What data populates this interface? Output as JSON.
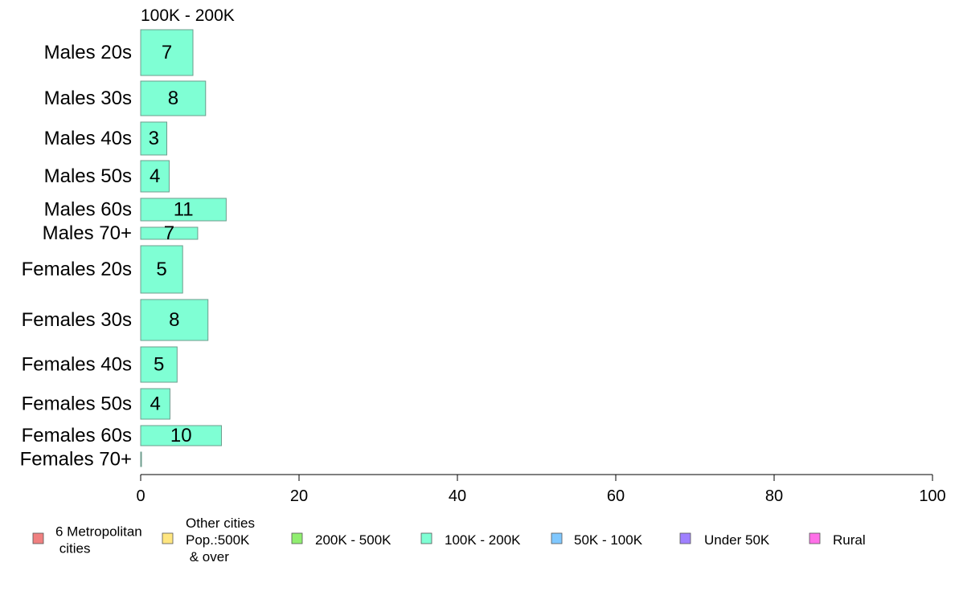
{
  "chart_data": {
    "type": "bar",
    "orientation": "horizontal",
    "variable_width": true,
    "panel_title": "100K - 200K",
    "categories": [
      "Males 20s",
      "Males 30s",
      "Males 40s",
      "Males 50s",
      "Males 60s",
      "Males 70+",
      "Females 20s",
      "Females 30s",
      "Females 40s",
      "Females 50s",
      "Females 60s",
      "Females 70+"
    ],
    "values": [
      6.6,
      8.2,
      3.3,
      3.6,
      10.8,
      7.2,
      5.3,
      8.5,
      4.6,
      3.7,
      10.2,
      0.1
    ],
    "value_labels": [
      "7",
      "8",
      "3",
      "4",
      "11",
      "7",
      "5",
      "8",
      "5",
      "4",
      "10",
      ""
    ],
    "bar_color": "#7fffd4",
    "xlim": [
      0,
      100
    ],
    "xticks": [
      "0",
      "20",
      "40",
      "60",
      "80",
      "100"
    ],
    "grid": false,
    "legend_position": "bottom",
    "legend": [
      {
        "lines": [
          "6 Metropolitan",
          " cities"
        ],
        "color": "#f08080"
      },
      {
        "lines": [
          "Other cities",
          "Pop.:500K",
          " & over"
        ],
        "color": "#ffe680"
      },
      {
        "lines": [
          "200K - 500K"
        ],
        "color": "#90ee70"
      },
      {
        "lines": [
          "100K - 200K"
        ],
        "color": "#7fffd4"
      },
      {
        "lines": [
          "50K - 100K"
        ],
        "color": "#80c8ff"
      },
      {
        "lines": [
          "Under 50K"
        ],
        "color": "#9f80ff"
      },
      {
        "lines": [
          "Rural"
        ],
        "color": "#ff70e8"
      }
    ]
  }
}
